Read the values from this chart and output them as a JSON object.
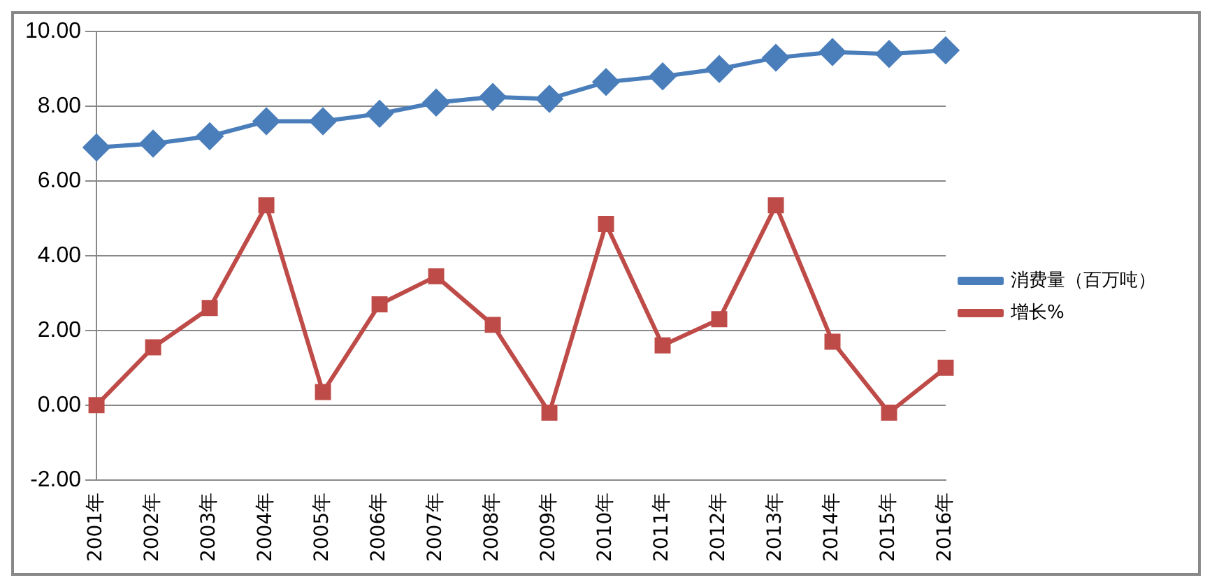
{
  "chart_data": {
    "type": "line",
    "categories": [
      "2001年",
      "2002年",
      "2003年",
      "2004年",
      "2005年",
      "2006年",
      "2007年",
      "2008年",
      "2009年",
      "2010年",
      "2011年",
      "2012年",
      "2013年",
      "2014年",
      "2015年",
      "2016年"
    ],
    "series": [
      {
        "name": "消费量（百万吨）",
        "color": "#4a7ebb",
        "marker": "diamond",
        "values": [
          6.9,
          7.0,
          7.2,
          7.6,
          7.6,
          7.8,
          8.1,
          8.25,
          8.2,
          8.65,
          8.8,
          9.0,
          9.3,
          9.45,
          9.4,
          9.5
        ]
      },
      {
        "name": "增长%",
        "color": "#be4b48",
        "marker": "square",
        "values": [
          0.0,
          1.55,
          2.6,
          5.35,
          0.35,
          2.7,
          3.45,
          2.15,
          -0.2,
          4.85,
          1.6,
          2.3,
          5.35,
          1.7,
          -0.2,
          1.0
        ]
      }
    ],
    "ylim": [
      -2,
      10
    ],
    "yticks": [
      {
        "value": -2,
        "label": "-2.00"
      },
      {
        "value": 0,
        "label": "0.00"
      },
      {
        "value": 2,
        "label": "2.00"
      },
      {
        "value": 4,
        "label": "4.00"
      },
      {
        "value": 6,
        "label": "6.00"
      },
      {
        "value": 8,
        "label": "8.00"
      },
      {
        "value": 10,
        "label": "10.00"
      }
    ],
    "grid": "y",
    "legend": "right",
    "line_style": "solid"
  }
}
